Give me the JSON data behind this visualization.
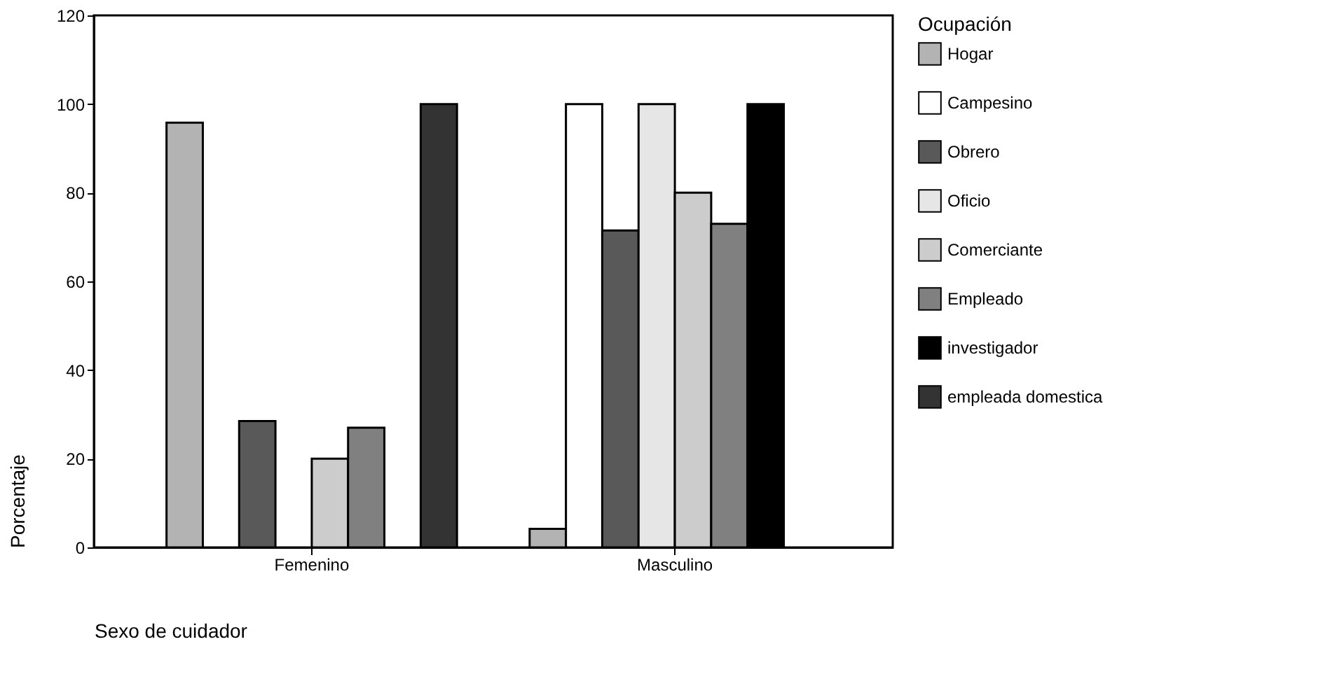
{
  "chart_data": {
    "type": "bar",
    "xlabel": "Sexo de cuidador",
    "ylabel": "Porcentaje",
    "legend_title": "Ocupación",
    "legend": "right",
    "grid": false,
    "categories": [
      "Femenino",
      "Masculino"
    ],
    "ylim": [
      0,
      120
    ],
    "yticks": [
      0,
      20,
      40,
      60,
      80,
      100,
      120
    ],
    "series": [
      {
        "name": "Hogar",
        "color": "#b3b3b3",
        "values": [
          95.8,
          4.2
        ]
      },
      {
        "name": "Campesino",
        "color": "#ffffff",
        "values": [
          null,
          100
        ]
      },
      {
        "name": "Obrero",
        "color": "#595959",
        "values": [
          28.5,
          71.5
        ]
      },
      {
        "name": "Oficio",
        "color": "#e6e6e6",
        "values": [
          null,
          100
        ]
      },
      {
        "name": "Comerciante",
        "color": "#cccccc",
        "values": [
          20,
          80
        ]
      },
      {
        "name": "Empleado",
        "color": "#808080",
        "values": [
          27,
          73
        ]
      },
      {
        "name": "investigador",
        "color": "#000000",
        "values": [
          null,
          100
        ]
      },
      {
        "name": "empleada domestica",
        "color": "#333333",
        "values": [
          100,
          null
        ]
      }
    ]
  }
}
